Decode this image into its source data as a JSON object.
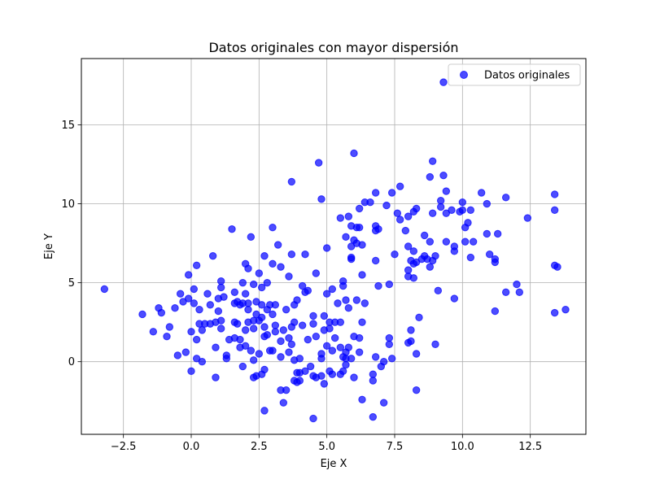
{
  "chart_data": {
    "type": "scatter",
    "title": "Datos originales con mayor dispersión",
    "xlabel": "Eje X",
    "ylabel": "Eje Y",
    "xlim": [
      -4.05,
      14.55
    ],
    "ylim": [
      -4.6,
      19.2
    ],
    "xticks": [
      -2.5,
      0.0,
      2.5,
      5.0,
      7.5,
      10.0,
      12.5
    ],
    "xtick_labels": [
      "−2.5",
      "0.0",
      "2.5",
      "5.0",
      "7.5",
      "10.0",
      "12.5"
    ],
    "yticks": [
      0,
      5,
      10,
      15
    ],
    "ytick_labels": [
      "0",
      "5",
      "10",
      "15"
    ],
    "grid": true,
    "legend": {
      "placement": "upper-right",
      "entries": [
        "Datos originales"
      ]
    },
    "colors": {
      "marker": "#0000ff",
      "grid": "#b0b0b0",
      "axes": "#000000",
      "legend_border": "#cccccc"
    },
    "series": [
      {
        "name": "Datos originales",
        "points": [
          [
            -3.2,
            4.6
          ],
          [
            -1.8,
            3.0
          ],
          [
            -1.4,
            1.9
          ],
          [
            -1.2,
            3.4
          ],
          [
            -1.1,
            3.1
          ],
          [
            -0.9,
            1.6
          ],
          [
            -0.8,
            2.2
          ],
          [
            -0.6,
            3.4
          ],
          [
            -0.5,
            0.4
          ],
          [
            -0.4,
            4.3
          ],
          [
            -0.3,
            3.8
          ],
          [
            -0.2,
            0.6
          ],
          [
            -0.1,
            5.5
          ],
          [
            -0.1,
            4.0
          ],
          [
            0.0,
            1.9
          ],
          [
            0.0,
            -0.6
          ],
          [
            0.1,
            4.6
          ],
          [
            0.1,
            3.7
          ],
          [
            0.2,
            6.1
          ],
          [
            0.2,
            0.2
          ],
          [
            0.2,
            1.4
          ],
          [
            0.3,
            3.3
          ],
          [
            0.3,
            2.4
          ],
          [
            0.4,
            2.0
          ],
          [
            0.4,
            0.0
          ],
          [
            0.5,
            2.4
          ],
          [
            0.6,
            4.3
          ],
          [
            0.7,
            2.4
          ],
          [
            0.7,
            3.6
          ],
          [
            0.8,
            6.7
          ],
          [
            0.9,
            0.9
          ],
          [
            0.9,
            2.5
          ],
          [
            0.9,
            -1.0
          ],
          [
            1.0,
            3.2
          ],
          [
            1.0,
            4.0
          ],
          [
            1.1,
            5.1
          ],
          [
            1.1,
            2.6
          ],
          [
            1.1,
            4.7
          ],
          [
            1.2,
            4.1
          ],
          [
            1.1,
            2.1
          ],
          [
            1.3,
            0.2
          ],
          [
            1.3,
            0.4
          ],
          [
            1.4,
            1.4
          ],
          [
            1.5,
            8.4
          ],
          [
            1.6,
            4.4
          ],
          [
            1.6,
            3.7
          ],
          [
            1.6,
            2.5
          ],
          [
            1.6,
            1.5
          ],
          [
            1.7,
            3.8
          ],
          [
            1.7,
            2.4
          ],
          [
            1.8,
            3.6
          ],
          [
            1.8,
            0.9
          ],
          [
            1.8,
            1.4
          ],
          [
            1.9,
            -0.3
          ],
          [
            1.9,
            5.0
          ],
          [
            1.9,
            3.7
          ],
          [
            2.0,
            6.2
          ],
          [
            2.0,
            4.3
          ],
          [
            2.0,
            2.0
          ],
          [
            2.0,
            1.0
          ],
          [
            2.1,
            3.3
          ],
          [
            2.1,
            3.7
          ],
          [
            2.1,
            5.9
          ],
          [
            2.1,
            2.5
          ],
          [
            2.2,
            0.7
          ],
          [
            2.2,
            7.9
          ],
          [
            2.3,
            0.1
          ],
          [
            2.3,
            2.6
          ],
          [
            2.3,
            4.9
          ],
          [
            2.3,
            2.1
          ],
          [
            2.3,
            -1.0
          ],
          [
            2.4,
            3.0
          ],
          [
            2.4,
            3.8
          ],
          [
            2.4,
            -0.9
          ],
          [
            2.5,
            2.6
          ],
          [
            2.5,
            0.5
          ],
          [
            2.5,
            5.6
          ],
          [
            2.6,
            3.6
          ],
          [
            2.6,
            2.8
          ],
          [
            2.6,
            4.7
          ],
          [
            2.6,
            -0.8
          ],
          [
            2.7,
            -0.5
          ],
          [
            2.7,
            1.6
          ],
          [
            2.7,
            -3.1
          ],
          [
            2.7,
            2.2
          ],
          [
            2.7,
            6.7
          ],
          [
            2.8,
            5.0
          ],
          [
            2.8,
            3.3
          ],
          [
            2.8,
            1.7
          ],
          [
            2.9,
            0.7
          ],
          [
            2.9,
            3.6
          ],
          [
            3.0,
            8.5
          ],
          [
            3.0,
            0.7
          ],
          [
            3.0,
            6.2
          ],
          [
            3.0,
            3.0
          ],
          [
            3.1,
            3.6
          ],
          [
            3.1,
            2.3
          ],
          [
            3.1,
            1.9
          ],
          [
            3.2,
            7.4
          ],
          [
            3.3,
            1.3
          ],
          [
            3.3,
            0.3
          ],
          [
            3.3,
            -1.8
          ],
          [
            3.3,
            6.0
          ],
          [
            3.4,
            2.0
          ],
          [
            3.4,
            -2.6
          ],
          [
            3.5,
            -1.8
          ],
          [
            3.5,
            3.3
          ],
          [
            3.6,
            1.5
          ],
          [
            3.6,
            5.4
          ],
          [
            3.6,
            0.6
          ],
          [
            3.7,
            6.8
          ],
          [
            3.7,
            11.4
          ],
          [
            3.7,
            2.2
          ],
          [
            3.7,
            1.1
          ],
          [
            3.8,
            -1.2
          ],
          [
            3.8,
            3.6
          ],
          [
            3.8,
            0.1
          ],
          [
            3.8,
            2.5
          ],
          [
            3.9,
            -0.7
          ],
          [
            3.9,
            -1.3
          ],
          [
            3.9,
            3.9
          ],
          [
            4.0,
            -0.7
          ],
          [
            4.0,
            0.2
          ],
          [
            4.0,
            -1.2
          ],
          [
            4.1,
            2.3
          ],
          [
            4.1,
            4.8
          ],
          [
            4.2,
            6.8
          ],
          [
            4.2,
            4.4
          ],
          [
            4.2,
            -0.6
          ],
          [
            4.3,
            1.4
          ],
          [
            4.3,
            4.5
          ],
          [
            4.4,
            -0.3
          ],
          [
            4.5,
            2.9
          ],
          [
            4.5,
            2.4
          ],
          [
            4.5,
            -3.6
          ],
          [
            4.5,
            -0.9
          ],
          [
            4.6,
            5.6
          ],
          [
            4.6,
            1.6
          ],
          [
            4.6,
            -1.0
          ],
          [
            4.7,
            12.6
          ],
          [
            4.8,
            -0.9
          ],
          [
            4.8,
            0.5
          ],
          [
            4.8,
            0.2
          ],
          [
            4.8,
            10.3
          ],
          [
            4.9,
            -1.4
          ],
          [
            4.9,
            2.9
          ],
          [
            4.9,
            2.0
          ],
          [
            5.0,
            7.2
          ],
          [
            5.0,
            4.3
          ],
          [
            5.0,
            1.0
          ],
          [
            5.1,
            -0.6
          ],
          [
            5.1,
            2.5
          ],
          [
            5.1,
            2.1
          ],
          [
            5.2,
            4.6
          ],
          [
            5.2,
            -0.8
          ],
          [
            5.2,
            0.7
          ],
          [
            5.3,
            2.5
          ],
          [
            5.3,
            1.5
          ],
          [
            5.4,
            3.7
          ],
          [
            5.5,
            0.9
          ],
          [
            5.5,
            2.5
          ],
          [
            5.5,
            -0.8
          ],
          [
            5.5,
            9.1
          ],
          [
            5.6,
            5.1
          ],
          [
            5.6,
            0.3
          ],
          [
            5.6,
            -0.6
          ],
          [
            5.6,
            4.8
          ],
          [
            5.7,
            0.2
          ],
          [
            5.7,
            7.9
          ],
          [
            5.7,
            3.9
          ],
          [
            5.7,
            -0.2
          ],
          [
            5.7,
            0.6
          ],
          [
            5.8,
            9.2
          ],
          [
            5.8,
            0.9
          ],
          [
            5.8,
            3.4
          ],
          [
            5.9,
            6.6
          ],
          [
            5.9,
            8.6
          ],
          [
            5.9,
            7.3
          ],
          [
            5.9,
            0.2
          ],
          [
            5.9,
            6.5
          ],
          [
            6.0,
            13.2
          ],
          [
            6.0,
            1.6
          ],
          [
            6.0,
            -1.0
          ],
          [
            6.0,
            7.7
          ],
          [
            6.1,
            8.5
          ],
          [
            6.1,
            3.9
          ],
          [
            6.1,
            7.5
          ],
          [
            6.2,
            9.7
          ],
          [
            6.2,
            1.5
          ],
          [
            6.2,
            8.5
          ],
          [
            6.2,
            0.6
          ],
          [
            6.3,
            5.5
          ],
          [
            6.3,
            -2.4
          ],
          [
            6.3,
            2.5
          ],
          [
            6.3,
            7.4
          ],
          [
            6.4,
            3.7
          ],
          [
            6.4,
            10.1
          ],
          [
            6.6,
            10.1
          ],
          [
            6.7,
            -3.5
          ],
          [
            6.7,
            -1.2
          ],
          [
            6.7,
            -0.8
          ],
          [
            6.8,
            0.3
          ],
          [
            6.8,
            8.3
          ],
          [
            6.8,
            6.4
          ],
          [
            6.8,
            10.7
          ],
          [
            6.8,
            8.6
          ],
          [
            6.9,
            4.8
          ],
          [
            6.9,
            8.4
          ],
          [
            7.0,
            -0.3
          ],
          [
            7.1,
            0.0
          ],
          [
            7.1,
            -2.6
          ],
          [
            7.2,
            9.9
          ],
          [
            7.3,
            4.9
          ],
          [
            7.3,
            1.5
          ],
          [
            7.3,
            1.1
          ],
          [
            7.4,
            0.2
          ],
          [
            7.4,
            10.7
          ],
          [
            7.5,
            6.8
          ],
          [
            7.6,
            9.4
          ],
          [
            7.7,
            11.1
          ],
          [
            7.7,
            9.0
          ],
          [
            7.9,
            8.3
          ],
          [
            8.0,
            5.8
          ],
          [
            8.0,
            7.3
          ],
          [
            8.0,
            1.2
          ],
          [
            8.0,
            9.2
          ],
          [
            8.0,
            5.4
          ],
          [
            8.1,
            2.0
          ],
          [
            8.1,
            1.3
          ],
          [
            8.1,
            6.4
          ],
          [
            8.2,
            5.3
          ],
          [
            8.2,
            9.5
          ],
          [
            8.2,
            6.2
          ],
          [
            8.2,
            7.0
          ],
          [
            8.3,
            9.7
          ],
          [
            8.3,
            -1.8
          ],
          [
            8.3,
            0.5
          ],
          [
            8.3,
            6.3
          ],
          [
            8.4,
            2.8
          ],
          [
            8.5,
            6.5
          ],
          [
            8.6,
            8.0
          ],
          [
            8.6,
            6.7
          ],
          [
            8.7,
            6.5
          ],
          [
            8.8,
            11.7
          ],
          [
            8.8,
            6.0
          ],
          [
            8.8,
            7.6
          ],
          [
            8.9,
            12.7
          ],
          [
            8.9,
            9.4
          ],
          [
            8.9,
            6.4
          ],
          [
            9.0,
            1.1
          ],
          [
            9.0,
            6.7
          ],
          [
            9.1,
            4.5
          ],
          [
            9.2,
            9.8
          ],
          [
            9.2,
            10.2
          ],
          [
            9.3,
            17.7
          ],
          [
            9.3,
            11.8
          ],
          [
            9.4,
            7.6
          ],
          [
            9.4,
            9.4
          ],
          [
            9.4,
            10.8
          ],
          [
            9.6,
            9.6
          ],
          [
            9.7,
            4.0
          ],
          [
            9.7,
            7.0
          ],
          [
            9.7,
            7.3
          ],
          [
            9.9,
            9.5
          ],
          [
            10.0,
            9.6
          ],
          [
            10.0,
            10.1
          ],
          [
            10.1,
            7.6
          ],
          [
            10.1,
            8.5
          ],
          [
            10.2,
            8.8
          ],
          [
            10.3,
            9.6
          ],
          [
            10.3,
            6.6
          ],
          [
            10.4,
            7.6
          ],
          [
            10.7,
            10.7
          ],
          [
            10.9,
            8.1
          ],
          [
            10.9,
            10.0
          ],
          [
            11.0,
            6.8
          ],
          [
            11.2,
            3.2
          ],
          [
            11.2,
            6.3
          ],
          [
            11.2,
            6.5
          ],
          [
            11.3,
            8.1
          ],
          [
            11.6,
            10.4
          ],
          [
            11.6,
            4.4
          ],
          [
            12.0,
            4.9
          ],
          [
            12.1,
            4.4
          ],
          [
            12.4,
            9.1
          ],
          [
            13.4,
            10.6
          ],
          [
            13.4,
            3.1
          ],
          [
            13.4,
            9.6
          ],
          [
            13.4,
            6.1
          ],
          [
            13.5,
            6.0
          ],
          [
            13.8,
            3.3
          ]
        ]
      }
    ]
  }
}
